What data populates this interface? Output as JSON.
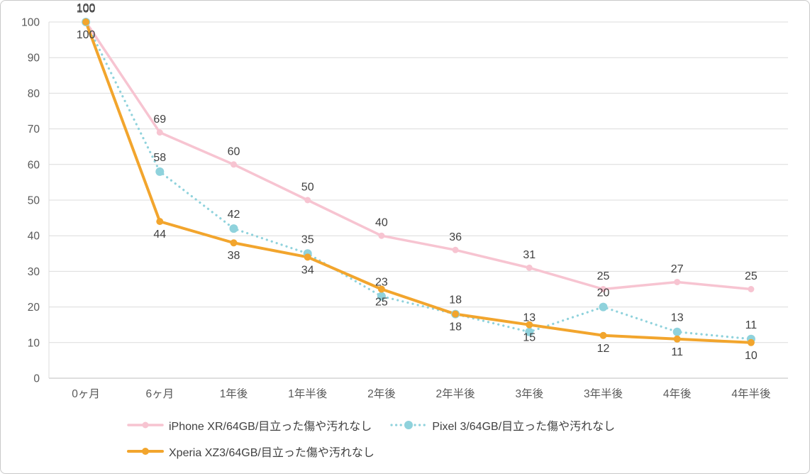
{
  "chart_data": {
    "type": "line",
    "title": "",
    "xlabel": "",
    "ylabel": "",
    "categories": [
      "0ヶ月",
      "6ヶ月",
      "1年後",
      "1年半後",
      "2年後",
      "2年半後",
      "3年後",
      "3年半後",
      "4年後",
      "4年半後"
    ],
    "series": [
      {
        "name": "iPhone XR/64GB/目立った傷や汚れなし",
        "values": [
          100,
          69,
          60,
          50,
          40,
          36,
          31,
          25,
          27,
          25
        ],
        "color": "#F7C4D1",
        "line_style": "solid",
        "line_width": 3.5,
        "marker_radius": 4.5,
        "label_position": "above"
      },
      {
        "name": "Pixel 3/64GB/目立った傷や汚れなし",
        "values": [
          100,
          58,
          42,
          35,
          23,
          18,
          13,
          20,
          13,
          11
        ],
        "color": "#8FD2DC",
        "line_style": "dotted",
        "line_width": 3.2,
        "marker_radius": 6,
        "label_position": "above"
      },
      {
        "name": "Xperia XZ3/64GB/目立った傷や汚れなし",
        "values": [
          100,
          44,
          38,
          34,
          25,
          18,
          15,
          12,
          11,
          10
        ],
        "color": "#F2A52D",
        "line_style": "solid",
        "line_width": 4,
        "marker_radius": 5,
        "label_position": "below"
      }
    ],
    "ylim": [
      0,
      100
    ],
    "ytick_step": 10,
    "grid": true,
    "legend_position": "bottom",
    "colors": {
      "grid_line": "#DCDCDC",
      "axis_line": "#BFBFBF",
      "axis_text": "#595959",
      "data_label_text": "#404040",
      "border": "#C9C9C9",
      "background": "#FFFFFF"
    }
  }
}
